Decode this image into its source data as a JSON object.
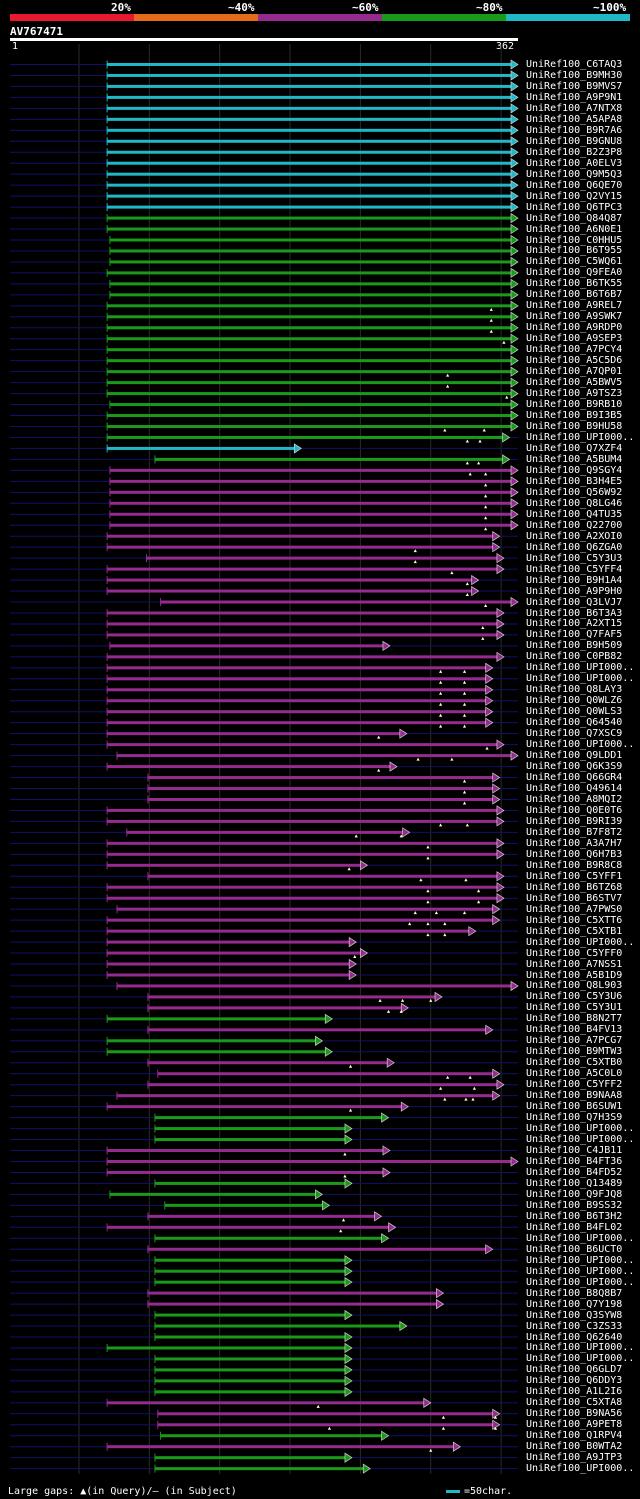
{
  "legend": {
    "segments": [
      {
        "label": "20%",
        "color": "#e8192f"
      },
      {
        "label": "~40%",
        "color": "#e56a1c"
      },
      {
        "label": "~60%",
        "color": "#952a8f"
      },
      {
        "label": "~80%",
        "color": "#1a9a1a"
      },
      {
        "label": "~100%",
        "color": "#21b8c6"
      }
    ]
  },
  "query": {
    "name": "AV767471",
    "start": "1",
    "end": "362"
  },
  "footer": {
    "gaps_text": "Large gaps: ▲(in Query)/– (in Subject)",
    "scale_text": "=50char."
  },
  "hits": [
    {
      "label": "UniRef100_C6TAQ3",
      "color": "#21b8c6",
      "start": 70,
      "end": 362,
      "marks": []
    },
    {
      "label": "UniRef100_B9MH30",
      "color": "#21b8c6",
      "start": 70,
      "end": 362,
      "marks": []
    },
    {
      "label": "UniRef100_B9MVS7",
      "color": "#21b8c6",
      "start": 70,
      "end": 362,
      "marks": []
    },
    {
      "label": "UniRef100_A9P9N1",
      "color": "#21b8c6",
      "start": 70,
      "end": 362,
      "marks": []
    },
    {
      "label": "UniRef100_A7NTX8",
      "color": "#21b8c6",
      "start": 70,
      "end": 362,
      "marks": []
    },
    {
      "label": "UniRef100_A5APA8",
      "color": "#21b8c6",
      "start": 70,
      "end": 362,
      "marks": []
    },
    {
      "label": "UniRef100_B9R7A6",
      "color": "#21b8c6",
      "start": 70,
      "end": 362,
      "marks": []
    },
    {
      "label": "UniRef100_B9GNU8",
      "color": "#21b8c6",
      "start": 70,
      "end": 362,
      "marks": []
    },
    {
      "label": "UniRef100_B2Z3P8",
      "color": "#21b8c6",
      "start": 70,
      "end": 362,
      "marks": []
    },
    {
      "label": "UniRef100_A0ELV3",
      "color": "#21b8c6",
      "start": 70,
      "end": 362,
      "marks": []
    },
    {
      "label": "UniRef100_Q9M5Q3",
      "color": "#21b8c6",
      "start": 70,
      "end": 362,
      "marks": []
    },
    {
      "label": "UniRef100_Q6QE70",
      "color": "#21b8c6",
      "start": 70,
      "end": 362,
      "marks": []
    },
    {
      "label": "UniRef100_Q2VY15",
      "color": "#21b8c6",
      "start": 70,
      "end": 362,
      "marks": []
    },
    {
      "label": "UniRef100_Q6TPC3",
      "color": "#21b8c6",
      "start": 70,
      "end": 362,
      "marks": []
    },
    {
      "label": "UniRef100_Q84Q87",
      "color": "#1a9a1a",
      "start": 70,
      "end": 362,
      "marks": []
    },
    {
      "label": "UniRef100_A6N0E1",
      "color": "#1a9a1a",
      "start": 70,
      "end": 362,
      "marks": []
    },
    {
      "label": "UniRef100_C0HHU5",
      "color": "#1a9a1a",
      "start": 72,
      "end": 362,
      "marks": []
    },
    {
      "label": "UniRef100_B6T955",
      "color": "#1a9a1a",
      "start": 72,
      "end": 362,
      "marks": []
    },
    {
      "label": "UniRef100_C5WQ61",
      "color": "#1a9a1a",
      "start": 72,
      "end": 362,
      "marks": []
    },
    {
      "label": "UniRef100_Q9FEA0",
      "color": "#1a9a1a",
      "start": 70,
      "end": 362,
      "marks": []
    },
    {
      "label": "UniRef100_B6TK55",
      "color": "#1a9a1a",
      "start": 72,
      "end": 362,
      "marks": []
    },
    {
      "label": "UniRef100_B6T6B7",
      "color": "#1a9a1a",
      "start": 72,
      "end": 362,
      "marks": []
    },
    {
      "label": "UniRef100_A9REL7",
      "color": "#1a9a1a",
      "start": 70,
      "end": 362,
      "marks": [
        343
      ]
    },
    {
      "label": "UniRef100_A9SWK7",
      "color": "#1a9a1a",
      "start": 70,
      "end": 362,
      "marks": [
        343
      ]
    },
    {
      "label": "UniRef100_A9RDP0",
      "color": "#1a9a1a",
      "start": 70,
      "end": 362,
      "marks": [
        343
      ]
    },
    {
      "label": "UniRef100_A9SEP3",
      "color": "#1a9a1a",
      "start": 70,
      "end": 362,
      "marks": [
        352
      ]
    },
    {
      "label": "UniRef100_A7PCY4",
      "color": "#1a9a1a",
      "start": 70,
      "end": 362,
      "marks": []
    },
    {
      "label": "UniRef100_A5C5D6",
      "color": "#1a9a1a",
      "start": 70,
      "end": 362,
      "marks": []
    },
    {
      "label": "UniRef100_A7QP01",
      "color": "#1a9a1a",
      "start": 70,
      "end": 362,
      "marks": [
        312
      ]
    },
    {
      "label": "UniRef100_A5BWV5",
      "color": "#1a9a1a",
      "start": 70,
      "end": 362,
      "marks": [
        312
      ]
    },
    {
      "label": "UniRef100_A9TSZ3",
      "color": "#1a9a1a",
      "start": 70,
      "end": 362,
      "marks": [
        354
      ]
    },
    {
      "label": "UniRef100_B9RB10",
      "color": "#1a9a1a",
      "start": 72,
      "end": 362,
      "marks": []
    },
    {
      "label": "UniRef100_B9I3B5",
      "color": "#1a9a1a",
      "start": 70,
      "end": 362,
      "marks": []
    },
    {
      "label": "UniRef100_B9HU58",
      "color": "#1a9a1a",
      "start": 70,
      "end": 362,
      "marks": [
        310,
        338
      ]
    },
    {
      "label": "UniRef100_UPI000..",
      "color": "#1a9a1a",
      "start": 70,
      "end": 356,
      "marks": [
        326,
        335
      ]
    },
    {
      "label": "UniRef100_Q7XZF4",
      "color": "#21b8c6",
      "start": 70,
      "end": 208,
      "marks": []
    },
    {
      "label": "UniRef100_A5BUM4",
      "color": "#1a9a1a",
      "start": 104,
      "end": 356,
      "marks": [
        326,
        334
      ]
    },
    {
      "label": "UniRef100_Q9SGY4",
      "color": "#952a8f",
      "start": 72,
      "end": 362,
      "marks": [
        328,
        339
      ]
    },
    {
      "label": "UniRef100_B3H4E5",
      "color": "#952a8f",
      "start": 72,
      "end": 362,
      "marks": [
        339
      ]
    },
    {
      "label": "UniRef100_Q56W92",
      "color": "#952a8f",
      "start": 72,
      "end": 362,
      "marks": [
        339
      ]
    },
    {
      "label": "UniRef100_Q8LG46",
      "color": "#952a8f",
      "start": 72,
      "end": 362,
      "marks": [
        339
      ]
    },
    {
      "label": "UniRef100_Q4TU35",
      "color": "#952a8f",
      "start": 72,
      "end": 362,
      "marks": [
        339
      ]
    },
    {
      "label": "UniRef100_Q22700",
      "color": "#952a8f",
      "start": 72,
      "end": 362,
      "marks": [
        339
      ]
    },
    {
      "label": "UniRef100_A2XOI0",
      "color": "#952a8f",
      "start": 70,
      "end": 349,
      "marks": []
    },
    {
      "label": "UniRef100_Q6ZGA0",
      "color": "#952a8f",
      "start": 70,
      "end": 349,
      "marks": [
        289
      ]
    },
    {
      "label": "UniRef100_C5Y3U3",
      "color": "#952a8f",
      "start": 98,
      "end": 352,
      "marks": [
        289
      ]
    },
    {
      "label": "UniRef100_C5YFF4",
      "color": "#952a8f",
      "start": 70,
      "end": 352,
      "marks": [
        315
      ]
    },
    {
      "label": "UniRef100_B9H1A4",
      "color": "#952a8f",
      "start": 70,
      "end": 334,
      "marks": [
        326
      ]
    },
    {
      "label": "UniRef100_A9P9H0",
      "color": "#952a8f",
      "start": 70,
      "end": 334,
      "marks": [
        326
      ]
    },
    {
      "label": "UniRef100_Q3LVJ7",
      "color": "#952a8f",
      "start": 108,
      "end": 362,
      "marks": [
        339
      ]
    },
    {
      "label": "UniRef100_B6T3A3",
      "color": "#952a8f",
      "start": 70,
      "end": 352,
      "marks": []
    },
    {
      "label": "UniRef100_A2XT15",
      "color": "#952a8f",
      "start": 70,
      "end": 352,
      "marks": [
        337
      ]
    },
    {
      "label": "UniRef100_Q7FAF5",
      "color": "#952a8f",
      "start": 70,
      "end": 352,
      "marks": [
        337
      ]
    },
    {
      "label": "UniRef100_B9H509",
      "color": "#952a8f",
      "start": 72,
      "end": 271,
      "marks": []
    },
    {
      "label": "UniRef100_C0PB82",
      "color": "#952a8f",
      "start": 70,
      "end": 352,
      "marks": []
    },
    {
      "label": "UniRef100_UPI000..",
      "color": "#952a8f",
      "start": 70,
      "end": 344,
      "marks": [
        307,
        324
      ]
    },
    {
      "label": "UniRef100_UPI000..",
      "color": "#952a8f",
      "start": 70,
      "end": 344,
      "marks": [
        307,
        324
      ]
    },
    {
      "label": "UniRef100_Q8LAY3",
      "color": "#952a8f",
      "start": 70,
      "end": 344,
      "marks": [
        307,
        324
      ]
    },
    {
      "label": "UniRef100_Q0WLZ6",
      "color": "#952a8f",
      "start": 70,
      "end": 344,
      "marks": [
        307,
        324
      ]
    },
    {
      "label": "UniRef100_Q0WLS3",
      "color": "#952a8f",
      "start": 70,
      "end": 344,
      "marks": [
        307,
        324
      ]
    },
    {
      "label": "UniRef100_Q64540",
      "color": "#952a8f",
      "start": 70,
      "end": 344,
      "marks": [
        307,
        324
      ]
    },
    {
      "label": "UniRef100_Q7XSC9",
      "color": "#952a8f",
      "start": 70,
      "end": 283,
      "marks": [
        263
      ]
    },
    {
      "label": "UniRef100_UPI000..",
      "color": "#952a8f",
      "start": 70,
      "end": 352,
      "marks": [
        340
      ]
    },
    {
      "label": "UniRef100_Q9LDD1",
      "color": "#952a8f",
      "start": 77,
      "end": 362,
      "marks": [
        291,
        315
      ]
    },
    {
      "label": "UniRef100_Q6K3S9",
      "color": "#952a8f",
      "start": 70,
      "end": 276,
      "marks": [
        263
      ]
    },
    {
      "label": "UniRef100_Q66GR4",
      "color": "#952a8f",
      "start": 99,
      "end": 349,
      "marks": [
        324
      ]
    },
    {
      "label": "UniRef100_Q49614",
      "color": "#952a8f",
      "start": 99,
      "end": 349,
      "marks": [
        324
      ]
    },
    {
      "label": "UniRef100_A8MQI2",
      "color": "#952a8f",
      "start": 99,
      "end": 349,
      "marks": [
        324
      ]
    },
    {
      "label": "UniRef100_Q0E0T6",
      "color": "#952a8f",
      "start": 70,
      "end": 352,
      "marks": []
    },
    {
      "label": "UniRef100_B9RI39",
      "color": "#952a8f",
      "start": 70,
      "end": 352,
      "marks": [
        307,
        326
      ]
    },
    {
      "label": "UniRef100_B7F8T2",
      "color": "#952a8f",
      "start": 84,
      "end": 285,
      "marks": [
        247,
        279
      ]
    },
    {
      "label": "UniRef100_A3A7H7",
      "color": "#952a8f",
      "start": 70,
      "end": 352,
      "marks": [
        298
      ]
    },
    {
      "label": "UniRef100_Q6H7B3",
      "color": "#952a8f",
      "start": 70,
      "end": 352,
      "marks": [
        298
      ]
    },
    {
      "label": "UniRef100_B9R8C8",
      "color": "#952a8f",
      "start": 70,
      "end": 255,
      "marks": [
        242
      ]
    },
    {
      "label": "UniRef100_C5YFF1",
      "color": "#952a8f",
      "start": 99,
      "end": 352,
      "marks": [
        293,
        325
      ]
    },
    {
      "label": "UniRef100_B6TZ68",
      "color": "#952a8f",
      "start": 70,
      "end": 352,
      "marks": [
        298,
        334
      ]
    },
    {
      "label": "UniRef100_B6STV7",
      "color": "#952a8f",
      "start": 70,
      "end": 352,
      "marks": [
        298,
        334
      ]
    },
    {
      "label": "UniRef100_A7PWS0",
      "color": "#952a8f",
      "start": 77,
      "end": 349,
      "marks": [
        289,
        304,
        324
      ]
    },
    {
      "label": "UniRef100_C5XTT6",
      "color": "#952a8f",
      "start": 70,
      "end": 349,
      "marks": [
        285,
        298,
        310
      ]
    },
    {
      "label": "UniRef100_C5XTB1",
      "color": "#952a8f",
      "start": 70,
      "end": 332,
      "marks": [
        298,
        310
      ]
    },
    {
      "label": "UniRef100_UPI000..",
      "color": "#952a8f",
      "start": 70,
      "end": 247,
      "marks": []
    },
    {
      "label": "UniRef100_C5YFF0",
      "color": "#952a8f",
      "start": 70,
      "end": 255,
      "marks": [
        246
      ]
    },
    {
      "label": "UniRef100_A7NSS1",
      "color": "#952a8f",
      "start": 70,
      "end": 247,
      "marks": []
    },
    {
      "label": "UniRef100_A5B1D9",
      "color": "#952a8f",
      "start": 70,
      "end": 247,
      "marks": []
    },
    {
      "label": "UniRef100_Q8L903",
      "color": "#952a8f",
      "start": 77,
      "end": 362,
      "marks": []
    },
    {
      "label": "UniRef100_C5Y3U6",
      "color": "#952a8f",
      "start": 99,
      "end": 308,
      "marks": [
        264,
        280,
        300
      ]
    },
    {
      "label": "UniRef100_C5Y3U1",
      "color": "#952a8f",
      "start": 99,
      "end": 284,
      "marks": [
        270,
        279
      ]
    },
    {
      "label": "UniRef100_B8N2T7",
      "color": "#1a9a1a",
      "start": 70,
      "end": 230,
      "marks": []
    },
    {
      "label": "UniRef100_B4FV13",
      "color": "#952a8f",
      "start": 99,
      "end": 344,
      "marks": []
    },
    {
      "label": "UniRef100_A7PCG7",
      "color": "#1a9a1a",
      "start": 70,
      "end": 223,
      "marks": []
    },
    {
      "label": "UniRef100_B9MTW3",
      "color": "#1a9a1a",
      "start": 70,
      "end": 230,
      "marks": []
    },
    {
      "label": "UniRef100_C5XTB0",
      "color": "#952a8f",
      "start": 99,
      "end": 274,
      "marks": [
        243
      ]
    },
    {
      "label": "UniRef100_A5C0L0",
      "color": "#952a8f",
      "start": 106,
      "end": 349,
      "marks": [
        312,
        328
      ]
    },
    {
      "label": "UniRef100_C5YFF2",
      "color": "#952a8f",
      "start": 99,
      "end": 352,
      "marks": [
        307,
        331
      ]
    },
    {
      "label": "UniRef100_B9NAA8",
      "color": "#952a8f",
      "start": 77,
      "end": 349,
      "marks": [
        310,
        325,
        330
      ]
    },
    {
      "label": "UniRef100_B6SUW1",
      "color": "#952a8f",
      "start": 70,
      "end": 284,
      "marks": [
        243
      ]
    },
    {
      "label": "UniRef100_Q7H3S9",
      "color": "#1a9a1a",
      "start": 104,
      "end": 270,
      "marks": []
    },
    {
      "label": "UniRef100_UPI000..",
      "color": "#1a9a1a",
      "start": 104,
      "end": 244,
      "marks": []
    },
    {
      "label": "UniRef100_UPI000..",
      "color": "#1a9a1a",
      "start": 104,
      "end": 244,
      "marks": []
    },
    {
      "label": "UniRef100_C4JB11",
      "color": "#952a8f",
      "start": 70,
      "end": 271,
      "marks": [
        239
      ]
    },
    {
      "label": "UniRef100_B4FT36",
      "color": "#952a8f",
      "start": 70,
      "end": 362,
      "marks": []
    },
    {
      "label": "UniRef100_B4FD52",
      "color": "#952a8f",
      "start": 70,
      "end": 271,
      "marks": [
        239
      ]
    },
    {
      "label": "UniRef100_Q13489",
      "color": "#1a9a1a",
      "start": 104,
      "end": 244,
      "marks": []
    },
    {
      "label": "UniRef100_Q9FJQ8",
      "color": "#1a9a1a",
      "start": 72,
      "end": 223,
      "marks": []
    },
    {
      "label": "UniRef100_B9SS32",
      "color": "#1a9a1a",
      "start": 111,
      "end": 228,
      "marks": []
    },
    {
      "label": "UniRef100_B6T3H2",
      "color": "#952a8f",
      "start": 99,
      "end": 265,
      "marks": [
        238
      ]
    },
    {
      "label": "UniRef100_B4FL02",
      "color": "#952a8f",
      "start": 70,
      "end": 275,
      "marks": [
        236
      ]
    },
    {
      "label": "UniRef100_UPI000..",
      "color": "#1a9a1a",
      "start": 104,
      "end": 270,
      "marks": []
    },
    {
      "label": "UniRef100_B6UCT0",
      "color": "#952a8f",
      "start": 99,
      "end": 344,
      "marks": []
    },
    {
      "label": "UniRef100_UPI000..",
      "color": "#1a9a1a",
      "start": 104,
      "end": 244,
      "marks": []
    },
    {
      "label": "UniRef100_UPI000..",
      "color": "#1a9a1a",
      "start": 104,
      "end": 244,
      "marks": []
    },
    {
      "label": "UniRef100_UPI000..",
      "color": "#1a9a1a",
      "start": 104,
      "end": 244,
      "marks": []
    },
    {
      "label": "UniRef100_B8Q8B7",
      "color": "#952a8f",
      "start": 99,
      "end": 309,
      "marks": []
    },
    {
      "label": "UniRef100_Q7Y198",
      "color": "#952a8f",
      "start": 99,
      "end": 309,
      "marks": []
    },
    {
      "label": "UniRef100_Q3SYW8",
      "color": "#1a9a1a",
      "start": 104,
      "end": 244,
      "marks": []
    },
    {
      "label": "UniRef100_C3ZS33",
      "color": "#1a9a1a",
      "start": 104,
      "end": 283,
      "marks": []
    },
    {
      "label": "UniRef100_Q62640",
      "color": "#1a9a1a",
      "start": 104,
      "end": 244,
      "marks": []
    },
    {
      "label": "UniRef100_UPI000..",
      "color": "#1a9a1a",
      "start": 70,
      "end": 244,
      "marks": []
    },
    {
      "label": "UniRef100_UPI000..",
      "color": "#1a9a1a",
      "start": 104,
      "end": 244,
      "marks": []
    },
    {
      "label": "UniRef100_Q6GLD7",
      "color": "#1a9a1a",
      "start": 104,
      "end": 244,
      "marks": []
    },
    {
      "label": "UniRef100_Q6DDY3",
      "color": "#1a9a1a",
      "start": 104,
      "end": 244,
      "marks": []
    },
    {
      "label": "UniRef100_A1L2I6",
      "color": "#1a9a1a",
      "start": 104,
      "end": 244,
      "marks": []
    },
    {
      "label": "UniRef100_C5XTA8",
      "color": "#952a8f",
      "start": 70,
      "end": 300,
      "marks": [
        220
      ]
    },
    {
      "label": "UniRef100_B9NA56",
      "color": "#952a8f",
      "start": 106,
      "end": 349,
      "marks": [
        309,
        346
      ]
    },
    {
      "label": "UniRef100_A9PET8",
      "color": "#952a8f",
      "start": 106,
      "end": 349,
      "marks": [
        228,
        309,
        346
      ]
    },
    {
      "label": "UniRef100_Q1RPV4",
      "color": "#1a9a1a",
      "start": 108,
      "end": 270,
      "marks": []
    },
    {
      "label": "UniRef100_B0WTA2",
      "color": "#952a8f",
      "start": 70,
      "end": 321,
      "marks": [
        300
      ]
    },
    {
      "label": "UniRef100_A9JTP3",
      "color": "#1a9a1a",
      "start": 104,
      "end": 244,
      "marks": []
    },
    {
      "label": "UniRef100_UPI000..",
      "color": "#1a9a1a",
      "start": 104,
      "end": 257,
      "marks": []
    }
  ]
}
